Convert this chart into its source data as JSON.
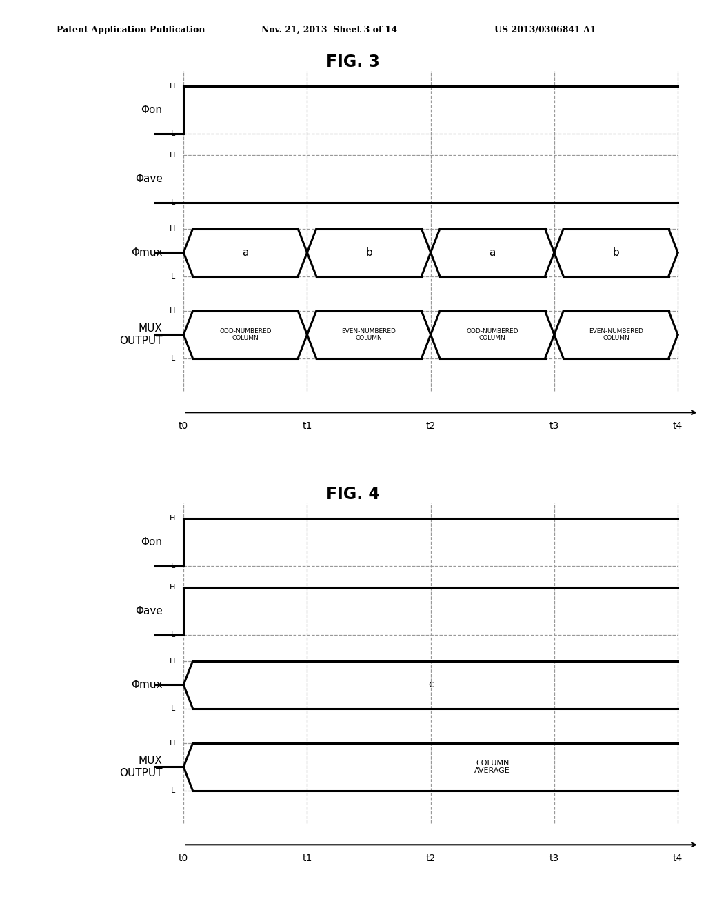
{
  "header_left": "Patent Application Publication",
  "header_mid": "Nov. 21, 2013  Sheet 3 of 14",
  "header_right": "US 2013/0306841 A1",
  "fig3_title": "FIG. 3",
  "fig4_title": "FIG. 4",
  "bg_color": "#ffffff",
  "line_color": "#000000",
  "dash_color": "#999999",
  "lw_signal": 2.2,
  "lw_dash": 0.9,
  "time_labels": [
    "t0",
    "t1",
    "t2",
    "t3",
    "t4"
  ],
  "fig3_mux_labels": [
    "a",
    "b",
    "a",
    "b"
  ],
  "fig3_out_labels": [
    "ODD-NUMBERED\nCOLUMN",
    "EVEN-NUMBERED\nCOLUMN",
    "ODD-NUMBERED\nCOLUMN",
    "EVEN-NUMBERED\nCOLUMN"
  ],
  "fig4_mux_label": "c",
  "fig4_out_label": "COLUMN\nAVERAGE"
}
